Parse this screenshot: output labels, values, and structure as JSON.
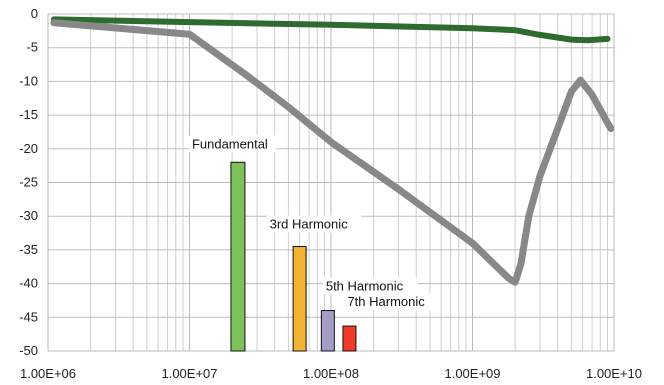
{
  "chart_data": {
    "type": "line",
    "x_scale": "log",
    "xlim": [
      1000000,
      10000000000
    ],
    "ylim": [
      -50,
      0
    ],
    "grid": true,
    "x_tick_labels": [
      "1.00E+06",
      "1.00E+07",
      "1.00E+08",
      "1.00E+09",
      "1.00E+10"
    ],
    "x_tick_values": [
      1000000,
      10000000,
      100000000,
      1000000000,
      10000000000
    ],
    "y_tick_labels": [
      "0",
      "-5",
      "-10",
      "-15",
      "-20",
      "-25",
      "-30",
      "-35",
      "-40",
      "-45",
      "-50"
    ],
    "y_tick_values": [
      0,
      -5,
      -10,
      -15,
      -20,
      -25,
      -30,
      -35,
      -40,
      -45,
      -50
    ],
    "series": [
      {
        "color": "#2e6b2e",
        "x": [
          1100000,
          10000000,
          100000000,
          1000000000,
          2000000000,
          3000000000,
          5000000000,
          6500000000,
          9000000000
        ],
        "y": [
          -0.8,
          -1.2,
          -1.6,
          -2.1,
          -2.4,
          -3.1,
          -3.8,
          -3.9,
          -3.7
        ]
      },
      {
        "color": "#888888",
        "x": [
          1100000,
          10000000,
          25000000,
          50000000,
          100000000,
          300000000,
          1000000000,
          1800000000,
          2000000000,
          2200000000,
          2500000000,
          3000000000,
          4000000000,
          5000000000,
          5800000000,
          7000000000,
          9500000000
        ],
        "y": [
          -1.3,
          -3.0,
          -9.0,
          -13.8,
          -19.0,
          -26.0,
          -34.0,
          -39.2,
          -39.8,
          -37.0,
          -30.0,
          -24.0,
          -17.0,
          -11.5,
          -9.8,
          -12.0,
          -17.0
        ]
      }
    ],
    "bars": [
      {
        "label": "Fundamental",
        "x": 22000000,
        "y": -22.0,
        "color": "#7dc15b"
      },
      {
        "label": "3rd Harmonic",
        "x": 60000000,
        "y": -34.5,
        "color": "#f2b233"
      },
      {
        "label": "5th Harmonic",
        "x": 95000000,
        "y": -44.0,
        "color": "#a79bc8"
      },
      {
        "label": "7th Harmonic",
        "x": 135000000,
        "y": -46.3,
        "color": "#f03a2a"
      }
    ]
  }
}
